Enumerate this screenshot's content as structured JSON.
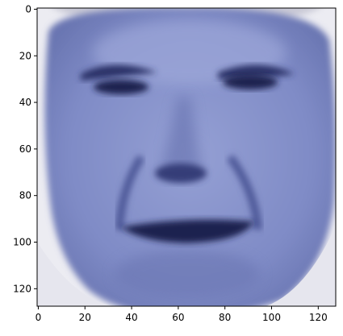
{
  "chart_data": {
    "type": "heatmap",
    "content": "image",
    "image_size": [
      128,
      128
    ],
    "xlim": [
      -0.5,
      127.5
    ],
    "ylim": [
      127.5,
      -0.5
    ],
    "y_axis_inverted": true,
    "x_ticks": [
      0,
      20,
      40,
      60,
      80,
      100,
      120
    ],
    "y_ticks": [
      0,
      20,
      40,
      60,
      80,
      100,
      120
    ],
    "x_tick_labels": [
      "0",
      "20",
      "40",
      "60",
      "80",
      "100",
      "120"
    ],
    "y_tick_labels": [
      "0",
      "20",
      "40",
      "60",
      "80",
      "100",
      "120"
    ],
    "title": "",
    "xlabel": "",
    "ylabel": "",
    "grid": false,
    "colors": {
      "skin": "#7f8bc6",
      "skin_light": "#9aa4d6",
      "skin_shadow": "#5e6aa6",
      "feature_dark": "#1f2450",
      "background": "#ececf2",
      "frame": "#000000"
    }
  }
}
